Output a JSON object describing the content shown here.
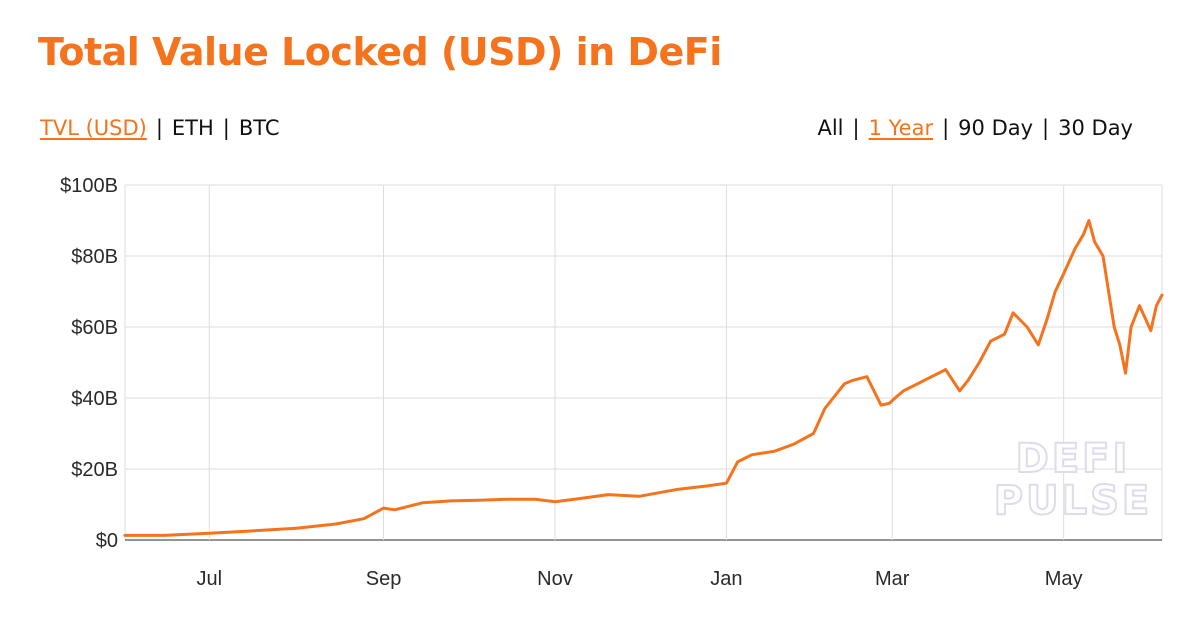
{
  "header": {
    "title": "Total Value Locked (USD) in DeFi"
  },
  "metric_toggles": [
    {
      "label": "TVL (USD)",
      "active": true
    },
    {
      "label": "ETH",
      "active": false
    },
    {
      "label": "BTC",
      "active": false
    }
  ],
  "range_toggles": [
    {
      "label": "All",
      "active": false
    },
    {
      "label": "1 Year",
      "active": true
    },
    {
      "label": "90 Day",
      "active": false
    },
    {
      "label": "30 Day",
      "active": false
    }
  ],
  "separator": "|",
  "watermark": {
    "line1": "DEFI",
    "line2": "PULSE"
  },
  "colors": {
    "accent": "#f5731c",
    "grid": "#dddddd",
    "text": "#111111"
  },
  "chart_data": {
    "type": "line",
    "title": "Total Value Locked (USD) in DeFi",
    "xlabel": "",
    "ylabel": "",
    "x_range": [
      "2020-06-01",
      "2021-06-05"
    ],
    "ylim": [
      0,
      100
    ],
    "y_unit": "billion USD",
    "y_ticks": [
      {
        "value": 0,
        "label": "$0"
      },
      {
        "value": 20,
        "label": "$20B"
      },
      {
        "value": 40,
        "label": "$40B"
      },
      {
        "value": 60,
        "label": "$60B"
      },
      {
        "value": 80,
        "label": "$80B"
      },
      {
        "value": 100,
        "label": "$100B"
      }
    ],
    "x_ticks": [
      {
        "date": "2020-07-01",
        "label": "Jul"
      },
      {
        "date": "2020-09-01",
        "label": "Sep"
      },
      {
        "date": "2020-11-01",
        "label": "Nov"
      },
      {
        "date": "2021-01-01",
        "label": "Jan"
      },
      {
        "date": "2021-03-01",
        "label": "Mar"
      },
      {
        "date": "2021-05-01",
        "label": "May"
      }
    ],
    "grid": true,
    "legend": "none",
    "series": [
      {
        "color": "#f5731c",
        "x": [
          "2020-06-01",
          "2020-06-15",
          "2020-07-01",
          "2020-07-15",
          "2020-08-01",
          "2020-08-15",
          "2020-08-25",
          "2020-09-01",
          "2020-09-05",
          "2020-09-15",
          "2020-09-25",
          "2020-10-05",
          "2020-10-15",
          "2020-10-25",
          "2020-11-01",
          "2020-11-08",
          "2020-11-20",
          "2020-12-01",
          "2020-12-10",
          "2020-12-15",
          "2020-12-25",
          "2021-01-01",
          "2021-01-05",
          "2021-01-10",
          "2021-01-18",
          "2021-01-25",
          "2021-02-01",
          "2021-02-05",
          "2021-02-08",
          "2021-02-12",
          "2021-02-15",
          "2021-02-20",
          "2021-02-25",
          "2021-02-28",
          "2021-03-02",
          "2021-03-05",
          "2021-03-10",
          "2021-03-15",
          "2021-03-20",
          "2021-03-25",
          "2021-03-28",
          "2021-04-01",
          "2021-04-05",
          "2021-04-10",
          "2021-04-13",
          "2021-04-18",
          "2021-04-22",
          "2021-04-25",
          "2021-04-28",
          "2021-05-01",
          "2021-05-05",
          "2021-05-08",
          "2021-05-10",
          "2021-05-12",
          "2021-05-15",
          "2021-05-17",
          "2021-05-19",
          "2021-05-21",
          "2021-05-23",
          "2021-05-25",
          "2021-05-28",
          "2021-06-01",
          "2021-06-03",
          "2021-06-05"
        ],
        "values": [
          1.3,
          1.3,
          1.9,
          2.5,
          3.3,
          4.5,
          6.0,
          9.0,
          8.5,
          10.5,
          11.0,
          11.2,
          11.5,
          11.5,
          10.8,
          11.5,
          12.8,
          12.3,
          13.6,
          14.3,
          15.2,
          16.0,
          22.0,
          24.0,
          25.0,
          27.0,
          30.0,
          37.0,
          40.0,
          44.0,
          45.0,
          46.0,
          38.0,
          38.5,
          40.0,
          42.0,
          44.0,
          46.0,
          48.0,
          42.0,
          45.0,
          50.0,
          56.0,
          58.0,
          64.0,
          60.0,
          55.0,
          62.0,
          70.0,
          75.0,
          82.0,
          86.0,
          90.0,
          84.0,
          80.0,
          70.0,
          60.0,
          55.0,
          47.0,
          60.0,
          66.0,
          59.0,
          66.0,
          69.0
        ]
      }
    ]
  }
}
